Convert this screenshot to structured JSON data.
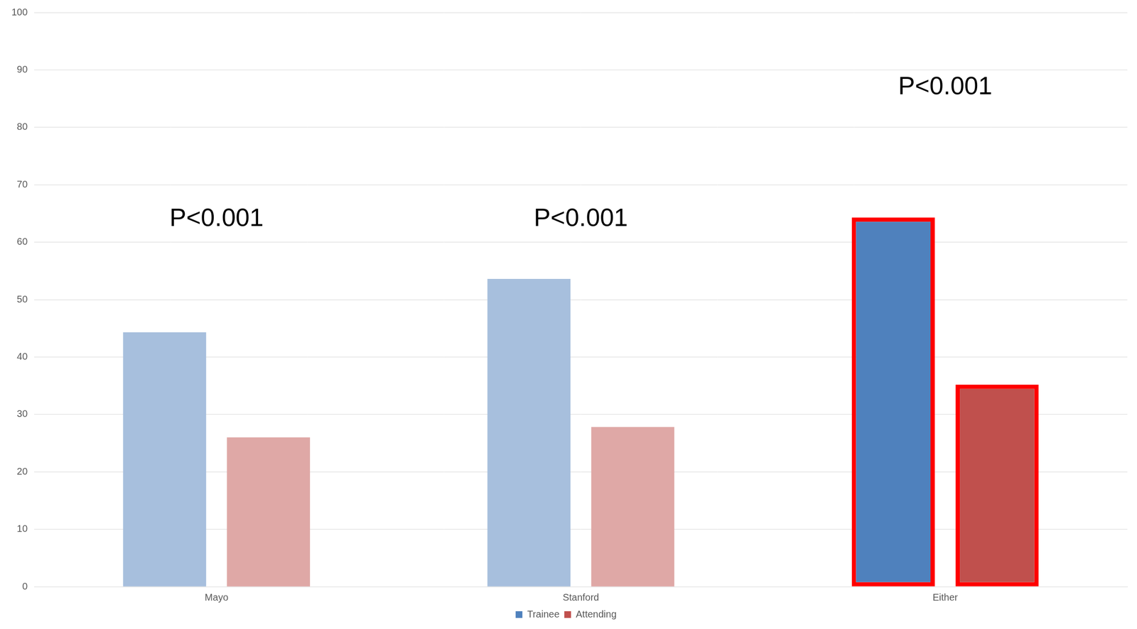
{
  "chart_data": {
    "type": "bar",
    "categories": [
      "Mayo",
      "Stanford",
      "Either"
    ],
    "series": [
      {
        "name": "Trainee",
        "color": "#4f81bd",
        "colors": [
          "#a7bfdd",
          "#a7bfdd",
          "#4f81bd"
        ],
        "values": [
          44.3,
          53.6,
          64.3
        ]
      },
      {
        "name": "Attending",
        "color": "#c0504d",
        "colors": [
          "#dfa8a6",
          "#dfa8a6",
          "#c0504d"
        ],
        "values": [
          26.0,
          27.8,
          35.2
        ]
      }
    ],
    "annotations": [
      {
        "text": "P<0.001",
        "x": "Mayo",
        "y": 64
      },
      {
        "text": "P<0.001",
        "x": "Stanford",
        "y": 64
      },
      {
        "text": "P<0.001",
        "x": "Either",
        "y": 87
      }
    ],
    "ylim": [
      0,
      100
    ],
    "yticks": [
      0,
      10,
      20,
      30,
      40,
      50,
      60,
      70,
      80,
      90,
      100
    ],
    "grid": true,
    "legend": "bottom"
  }
}
